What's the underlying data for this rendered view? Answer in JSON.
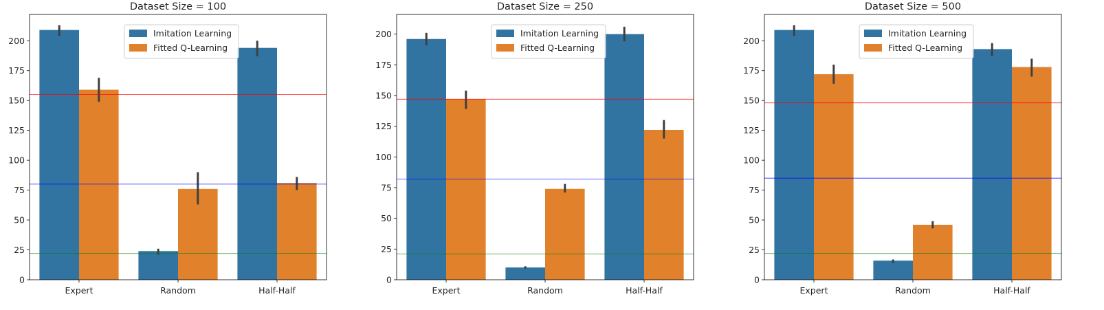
{
  "chart_data": [
    {
      "type": "bar",
      "title": "Dataset Size = 100",
      "categories": [
        "Expert",
        "Random",
        "Half-Half"
      ],
      "series": [
        {
          "name": "Imitation Learning",
          "color": "#3274a1",
          "values": [
            209,
            24,
            194
          ],
          "err_low": [
            204,
            21,
            187
          ],
          "err_high": [
            213,
            26,
            200
          ]
        },
        {
          "name": "Fitted Q-Learning",
          "color": "#e1812c",
          "values": [
            159,
            76,
            81
          ],
          "err_low": [
            149,
            63,
            75
          ],
          "err_high": [
            169,
            90,
            86
          ]
        }
      ],
      "ylim": [
        0,
        222
      ],
      "yticks": [
        0,
        25,
        50,
        75,
        100,
        125,
        150,
        175,
        200
      ],
      "hlines": [
        {
          "y": 155,
          "color": "#ff0000"
        },
        {
          "y": 80,
          "color": "#0000ff"
        },
        {
          "y": 22,
          "color": "#008000"
        }
      ],
      "legend": "upper-center"
    },
    {
      "type": "bar",
      "title": "Dataset Size = 250",
      "categories": [
        "Expert",
        "Random",
        "Half-Half"
      ],
      "series": [
        {
          "name": "Imitation Learning",
          "color": "#3274a1",
          "values": [
            196,
            10,
            200
          ],
          "err_low": [
            191,
            9,
            194
          ],
          "err_high": [
            201,
            11,
            206
          ]
        },
        {
          "name": "Fitted Q-Learning",
          "color": "#e1812c",
          "values": [
            147,
            74,
            122
          ],
          "err_low": [
            139,
            71,
            115
          ],
          "err_high": [
            154,
            78,
            130
          ]
        }
      ],
      "ylim": [
        0,
        216
      ],
      "yticks": [
        0,
        25,
        50,
        75,
        100,
        125,
        150,
        175,
        200
      ],
      "hlines": [
        {
          "y": 147,
          "color": "#ff0000"
        },
        {
          "y": 82,
          "color": "#0000ff"
        },
        {
          "y": 21,
          "color": "#008000"
        }
      ],
      "legend": "upper-center"
    },
    {
      "type": "bar",
      "title": "Dataset Size = 500",
      "categories": [
        "Expert",
        "Random",
        "Half-Half"
      ],
      "series": [
        {
          "name": "Imitation Learning",
          "color": "#3274a1",
          "values": [
            209,
            16,
            193
          ],
          "err_low": [
            204,
            14,
            187
          ],
          "err_high": [
            213,
            17,
            198
          ]
        },
        {
          "name": "Fitted Q-Learning",
          "color": "#e1812c",
          "values": [
            172,
            46,
            178
          ],
          "err_low": [
            164,
            43,
            170
          ],
          "err_high": [
            180,
            49,
            185
          ]
        }
      ],
      "ylim": [
        0,
        222
      ],
      "yticks": [
        0,
        25,
        50,
        75,
        100,
        125,
        150,
        175,
        200
      ],
      "hlines": [
        {
          "y": 148,
          "color": "#ff0000"
        },
        {
          "y": 85,
          "color": "#0000ff"
        },
        {
          "y": 22,
          "color": "#008000"
        }
      ],
      "legend": "upper-center"
    }
  ]
}
